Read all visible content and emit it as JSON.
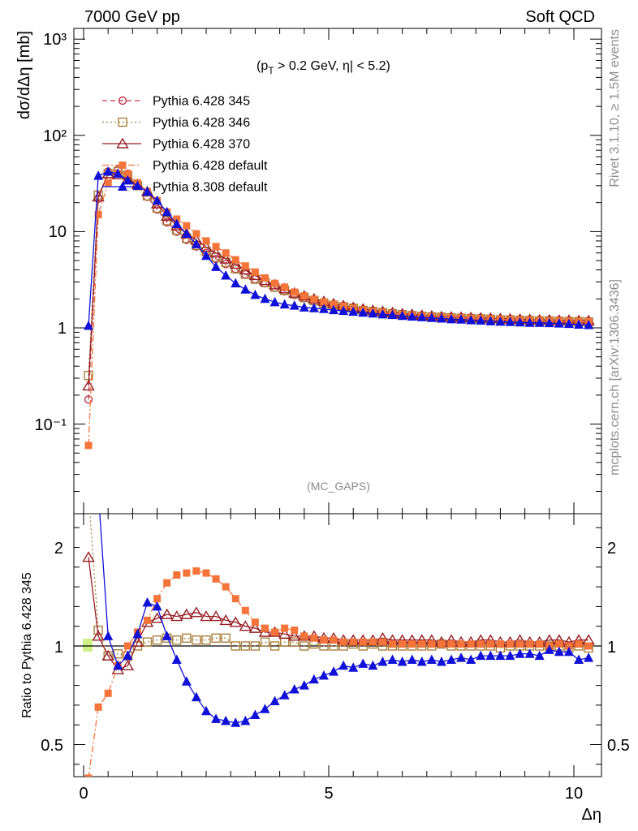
{
  "header": {
    "left": "7000 GeV pp",
    "right": "Soft QCD"
  },
  "side_labels": {
    "rivet": "Rivet 3.1.10, ≥ 1.5M events",
    "mcplots": "mcplots.cern.ch [arXiv:1306.3436]"
  },
  "chart_data": [
    {
      "type": "line",
      "panel": "main",
      "annotation_main": "(p",
      "annotation_sub": "T",
      "annotation_rest": " > 0.2 GeV, η| < 5.2)",
      "analysis_label": "(MC_GAPS)",
      "ylabel": "dσ/dΔη [mb]",
      "xlim": [
        -0.2,
        10.5
      ],
      "ylim": [
        0.01,
        1300
      ],
      "yscale": "log",
      "ytick_labels": {
        "major": [
          "10⁻¹",
          "1",
          "10",
          "10²",
          "10³"
        ]
      },
      "legend_position": "top-left",
      "series": [
        {
          "name": "Pythia 6.428 345",
          "color": "#c0344c",
          "marker": "open-circle",
          "style": "dashed",
          "x": [
            0.1,
            0.3,
            0.5,
            0.7,
            0.9,
            1.1,
            1.3,
            1.5,
            1.7,
            1.9,
            2.1,
            2.3,
            2.5,
            2.7,
            2.9,
            3.1,
            3.3,
            3.5,
            3.7,
            3.9,
            4.1,
            4.3,
            4.5,
            4.7,
            4.9,
            5.1,
            5.3,
            5.5,
            5.7,
            5.9,
            6.1,
            6.3,
            6.5,
            6.7,
            6.9,
            7.1,
            7.3,
            7.5,
            7.7,
            7.9,
            8.1,
            8.3,
            8.5,
            8.7,
            8.9,
            9.1,
            9.3,
            9.5,
            9.7,
            9.9,
            10.1,
            10.3
          ],
          "y": [
            0.18,
            22,
            42,
            44,
            40,
            30,
            23,
            17,
            12.5,
            10,
            8.2,
            7,
            6,
            5.2,
            4.6,
            4.1,
            3.6,
            3.2,
            2.9,
            2.6,
            2.4,
            2.2,
            2.05,
            1.9,
            1.8,
            1.72,
            1.65,
            1.58,
            1.52,
            1.47,
            1.43,
            1.4,
            1.37,
            1.34,
            1.32,
            1.3,
            1.28,
            1.27,
            1.26,
            1.25,
            1.24,
            1.23,
            1.22,
            1.21,
            1.2,
            1.19,
            1.18,
            1.18,
            1.17,
            1.17,
            1.16,
            1.16
          ]
        },
        {
          "name": "Pythia 6.428 346",
          "color": "#a8803c",
          "marker": "open-square",
          "style": "dotted",
          "x": [
            0.1,
            0.3,
            0.5,
            0.7,
            0.9,
            1.1,
            1.3,
            1.5,
            1.7,
            1.9,
            2.1,
            2.3,
            2.5,
            2.7,
            2.9,
            3.1,
            3.3,
            3.5,
            3.7,
            3.9,
            4.1,
            4.3,
            4.5,
            4.7,
            4.9,
            5.1,
            5.3,
            5.5,
            5.7,
            5.9,
            6.1,
            6.3,
            6.5,
            6.7,
            6.9,
            7.1,
            7.3,
            7.5,
            7.7,
            7.9,
            8.1,
            8.3,
            8.5,
            8.7,
            8.9,
            9.1,
            9.3,
            9.5,
            9.7,
            9.9,
            10.1,
            10.3
          ],
          "y": [
            0.32,
            24,
            40,
            42,
            38,
            30,
            23.5,
            17.5,
            13,
            10.3,
            8.5,
            7.2,
            6.2,
            5.4,
            4.8,
            4.1,
            3.6,
            3.2,
            2.95,
            2.65,
            2.45,
            2.25,
            2.06,
            1.92,
            1.8,
            1.72,
            1.66,
            1.6,
            1.52,
            1.48,
            1.44,
            1.4,
            1.37,
            1.34,
            1.32,
            1.3,
            1.29,
            1.27,
            1.26,
            1.25,
            1.24,
            1.23,
            1.21,
            1.21,
            1.2,
            1.19,
            1.18,
            1.18,
            1.17,
            1.16,
            1.16,
            1.15
          ]
        },
        {
          "name": "Pythia 6.428 370",
          "color": "#961e24",
          "marker": "open-triangle",
          "style": "solid",
          "x": [
            0.1,
            0.3,
            0.5,
            0.7,
            0.9,
            1.1,
            1.3,
            1.5,
            1.7,
            1.9,
            2.1,
            2.3,
            2.5,
            2.7,
            2.9,
            3.1,
            3.3,
            3.5,
            3.7,
            3.9,
            4.1,
            4.3,
            4.5,
            4.7,
            4.9,
            5.1,
            5.3,
            5.5,
            5.7,
            5.9,
            6.1,
            6.3,
            6.5,
            6.7,
            6.9,
            7.1,
            7.3,
            7.5,
            7.7,
            7.9,
            8.1,
            8.3,
            8.5,
            8.7,
            8.9,
            9.1,
            9.3,
            9.5,
            9.7,
            9.9,
            10.1,
            10.3
          ],
          "y": [
            0.25,
            23,
            40,
            39,
            35,
            31,
            26,
            19.5,
            14.5,
            11.5,
            9.5,
            8.2,
            6.9,
            6,
            5.2,
            4.6,
            4,
            3.5,
            3.1,
            2.8,
            2.55,
            2.3,
            2.15,
            2,
            1.88,
            1.78,
            1.7,
            1.63,
            1.57,
            1.52,
            1.48,
            1.44,
            1.4,
            1.38,
            1.35,
            1.33,
            1.31,
            1.3,
            1.29,
            1.28,
            1.27,
            1.26,
            1.25,
            1.24,
            1.23,
            1.22,
            1.21,
            1.21,
            1.2,
            1.2,
            1.19,
            1.19
          ]
        },
        {
          "name": "Pythia 6.428 default",
          "color": "#f5743a",
          "marker": "filled-square",
          "style": "dashdot",
          "x": [
            0.1,
            0.3,
            0.5,
            0.7,
            0.9,
            1.1,
            1.3,
            1.5,
            1.7,
            1.9,
            2.1,
            2.3,
            2.5,
            2.7,
            2.9,
            3.1,
            3.3,
            3.5,
            3.7,
            3.9,
            4.1,
            4.3,
            4.5,
            4.7,
            4.9,
            5.1,
            5.3,
            5.5,
            5.7,
            5.9,
            6.1,
            6.3,
            6.5,
            6.7,
            6.9,
            7.1,
            7.3,
            7.5,
            7.7,
            7.9,
            8.1,
            8.3,
            8.5,
            8.7,
            8.9,
            9.1,
            9.3,
            9.5,
            9.7,
            9.9,
            10.1,
            10.3
          ],
          "y": [
            0.06,
            15,
            32,
            40,
            40,
            32,
            26,
            21,
            16,
            13.5,
            11.5,
            9.5,
            8,
            7,
            6,
            5.1,
            4.4,
            3.8,
            3.3,
            2.9,
            2.65,
            2.35,
            2.15,
            1.98,
            1.86,
            1.76,
            1.68,
            1.6,
            1.54,
            1.49,
            1.45,
            1.41,
            1.38,
            1.35,
            1.33,
            1.31,
            1.29,
            1.28,
            1.27,
            1.26,
            1.25,
            1.24,
            1.23,
            1.22,
            1.21,
            1.2,
            1.19,
            1.18,
            1.18,
            1.17,
            1.17,
            1.16
          ]
        },
        {
          "name": "Pythia 8.308 default",
          "color": "#1010d8",
          "marker": "filled-triangle",
          "style": "solid",
          "x": [
            0.1,
            0.3,
            0.5,
            0.7,
            0.9,
            1.1,
            1.3,
            1.5,
            1.7,
            1.9,
            2.1,
            2.3,
            2.5,
            2.7,
            2.9,
            3.1,
            3.3,
            3.5,
            3.7,
            3.9,
            4.1,
            4.3,
            4.5,
            4.7,
            4.9,
            5.1,
            5.3,
            5.5,
            5.7,
            5.9,
            6.1,
            6.3,
            6.5,
            6.7,
            6.9,
            7.1,
            7.3,
            7.5,
            7.7,
            7.9,
            8.1,
            8.3,
            8.5,
            8.7,
            8.9,
            9.1,
            9.3,
            9.5,
            9.7,
            9.9,
            10.1,
            10.3
          ],
          "y": [
            1.05,
            38,
            42,
            40,
            34,
            30,
            26,
            21,
            16,
            12,
            9.5,
            7.4,
            5.6,
            4.3,
            3.5,
            2.9,
            2.5,
            2.2,
            2,
            1.85,
            1.75,
            1.7,
            1.63,
            1.6,
            1.57,
            1.53,
            1.5,
            1.47,
            1.44,
            1.41,
            1.38,
            1.36,
            1.33,
            1.31,
            1.29,
            1.27,
            1.25,
            1.23,
            1.22,
            1.2,
            1.19,
            1.17,
            1.16,
            1.15,
            1.14,
            1.13,
            1.13,
            1.12,
            1.11,
            1.1,
            1.08,
            1.07
          ]
        }
      ]
    },
    {
      "type": "line",
      "panel": "ratio",
      "ylabel": "Ratio to Pythia 6.428 345",
      "xlabel": "Δη",
      "xlim": [
        -0.2,
        10.5
      ],
      "ylim": [
        0.4,
        2.4
      ],
      "ytick_labels": [
        "0.5",
        "1",
        "2"
      ],
      "xtick_labels": [
        "0",
        "5",
        "10"
      ],
      "reference_line": 1,
      "series": [
        {
          "name": "Pythia 6.428 346",
          "color": "#a8803c",
          "marker": "open-square",
          "style": "dotted",
          "x": [
            0.1,
            0.3,
            0.5,
            0.7,
            0.9,
            1.1,
            1.3,
            1.5,
            1.7,
            1.9,
            2.1,
            2.3,
            2.5,
            2.7,
            2.9,
            3.1,
            3.3,
            3.5,
            3.7,
            3.9,
            4.1,
            4.3,
            4.5,
            4.7,
            4.9,
            5.1,
            5.3,
            5.5,
            5.7,
            5.9,
            6.1,
            6.3,
            6.5,
            6.7,
            6.9,
            7.1,
            7.3,
            7.5,
            7.7,
            7.9,
            8.1,
            8.3,
            8.5,
            8.7,
            8.9,
            9.1,
            9.3,
            9.5,
            9.7,
            9.9,
            10.1,
            10.3
          ],
          "y": [
            1.78,
            1.08,
            0.95,
            0.96,
            0.95,
            1.0,
            1.02,
            1.03,
            1.04,
            1.03,
            1.04,
            1.03,
            1.03,
            1.04,
            1.04,
            1.0,
            1.0,
            1.0,
            1.02,
            1.0,
            1.02,
            1.02,
            1.0,
            1.01,
            1.0,
            1.0,
            1.0,
            1.01,
            1.0,
            1.01,
            1.0,
            1.0,
            1.0,
            1.0,
            1.0,
            1.0,
            1.01,
            1.0,
            1.0,
            1.0,
            1.0,
            1.0,
            0.99,
            1.0,
            1.0,
            1.0,
            1.0,
            1.0,
            1.0,
            0.99,
            1.0,
            0.99
          ]
        },
        {
          "name": "Pythia 6.428 370",
          "color": "#961e24",
          "marker": "open-triangle",
          "style": "solid",
          "x": [
            0.1,
            0.3,
            0.5,
            0.7,
            0.9,
            1.1,
            1.3,
            1.5,
            1.7,
            1.9,
            2.1,
            2.3,
            2.5,
            2.7,
            2.9,
            3.1,
            3.3,
            3.5,
            3.7,
            3.9,
            4.1,
            4.3,
            4.5,
            4.7,
            4.9,
            5.1,
            5.3,
            5.5,
            5.7,
            5.9,
            6.1,
            6.3,
            6.5,
            6.7,
            6.9,
            7.1,
            7.3,
            7.5,
            7.7,
            7.9,
            8.1,
            8.3,
            8.5,
            8.7,
            8.9,
            9.1,
            9.3,
            9.5,
            9.7,
            9.9,
            10.1,
            10.3
          ],
          "y": [
            1.45,
            1.05,
            0.95,
            0.88,
            0.9,
            1.02,
            1.12,
            1.14,
            1.16,
            1.15,
            1.16,
            1.17,
            1.15,
            1.15,
            1.13,
            1.12,
            1.1,
            1.09,
            1.07,
            1.07,
            1.06,
            1.05,
            1.05,
            1.05,
            1.04,
            1.04,
            1.03,
            1.03,
            1.03,
            1.03,
            1.04,
            1.03,
            1.03,
            1.03,
            1.03,
            1.03,
            1.02,
            1.03,
            1.02,
            1.02,
            1.03,
            1.03,
            1.02,
            1.02,
            1.03,
            1.02,
            1.02,
            1.03,
            1.03,
            1.02,
            1.03,
            1.03
          ]
        },
        {
          "name": "Pythia 6.428 default",
          "color": "#f5743a",
          "marker": "filled-square",
          "style": "dashdot",
          "x": [
            0.1,
            0.3,
            0.5,
            0.7,
            0.9,
            1.1,
            1.3,
            1.5,
            1.7,
            1.9,
            2.1,
            2.3,
            2.5,
            2.7,
            2.9,
            3.1,
            3.3,
            3.5,
            3.7,
            3.9,
            4.1,
            4.3,
            4.5,
            4.7,
            4.9,
            5.1,
            5.3,
            5.5,
            5.7,
            5.9,
            6.1,
            6.3,
            6.5,
            6.7,
            6.9,
            7.1,
            7.3,
            7.5,
            7.7,
            7.9,
            8.1,
            8.3,
            8.5,
            8.7,
            8.9,
            9.1,
            9.3,
            9.5,
            9.7,
            9.9,
            10.1,
            10.3
          ],
          "y": [
            0.33,
            0.69,
            0.76,
            0.9,
            1.0,
            1.07,
            1.13,
            1.24,
            1.32,
            1.36,
            1.37,
            1.38,
            1.37,
            1.34,
            1.3,
            1.24,
            1.18,
            1.12,
            1.09,
            1.07,
            1.09,
            1.08,
            1.05,
            1.04,
            1.03,
            1.03,
            1.02,
            1.02,
            1.02,
            1.02,
            1.02,
            1.01,
            1.01,
            1.01,
            1.01,
            1.01,
            1.01,
            1.01,
            1.01,
            1.01,
            1.01,
            1.01,
            1.01,
            1.01,
            1.01,
            1.01,
            1.01,
            1.0,
            1.01,
            1.0,
            1.01,
            1.0
          ]
        },
        {
          "name": "Pythia 8.308 default",
          "color": "#1010d8",
          "marker": "filled-triangle",
          "style": "solid",
          "x": [
            0.1,
            0.3,
            0.5,
            0.7,
            0.9,
            1.1,
            1.3,
            1.5,
            1.7,
            1.9,
            2.1,
            2.3,
            2.5,
            2.7,
            2.9,
            3.1,
            3.3,
            3.5,
            3.7,
            3.9,
            4.1,
            4.3,
            4.5,
            4.7,
            4.9,
            5.1,
            5.3,
            5.5,
            5.7,
            5.9,
            6.1,
            6.3,
            6.5,
            6.7,
            6.9,
            7.1,
            7.3,
            7.5,
            7.7,
            7.9,
            8.1,
            8.3,
            8.5,
            8.7,
            8.9,
            9.1,
            9.3,
            9.5,
            9.7,
            9.9,
            10.1,
            10.3
          ],
          "y": [
            2.6,
            1.78,
            1.05,
            0.9,
            0.95,
            1.06,
            1.22,
            1.2,
            1.05,
            0.93,
            0.82,
            0.74,
            0.67,
            0.63,
            0.62,
            0.61,
            0.62,
            0.65,
            0.68,
            0.72,
            0.75,
            0.78,
            0.8,
            0.83,
            0.85,
            0.87,
            0.9,
            0.89,
            0.91,
            0.9,
            0.92,
            0.93,
            0.92,
            0.93,
            0.92,
            0.93,
            0.92,
            0.93,
            0.94,
            0.93,
            0.95,
            0.95,
            0.95,
            0.95,
            0.96,
            0.96,
            0.95,
            0.98,
            0.97,
            0.97,
            0.93,
            0.94
          ]
        }
      ]
    }
  ]
}
